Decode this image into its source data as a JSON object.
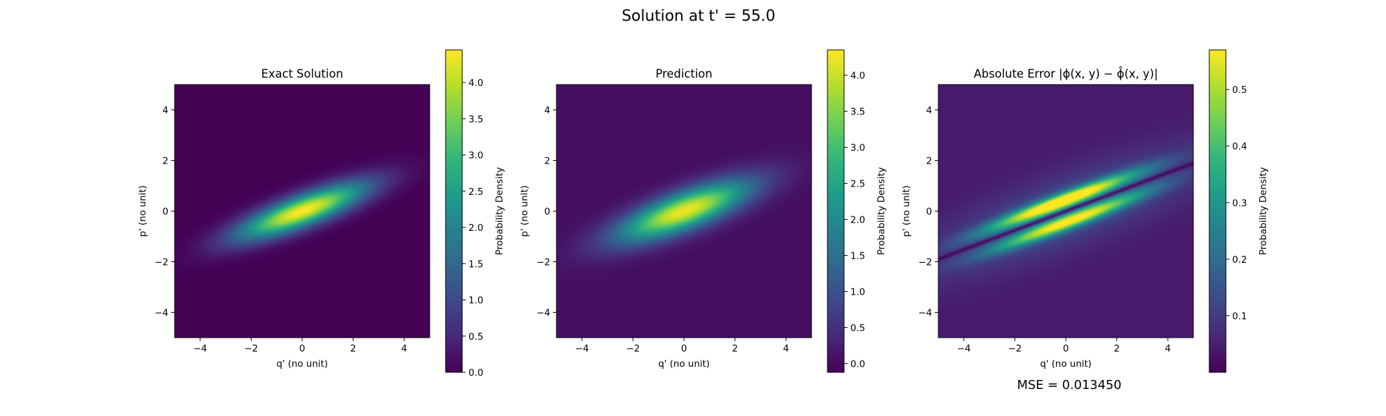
{
  "suptitle": "Solution at t' = 55.0",
  "mse_text": "MSE = 0.013450",
  "colors": {
    "colormap": "viridis",
    "viridis_stops": [
      "#440154",
      "#482878",
      "#3e4989",
      "#31688e",
      "#26828e",
      "#1f9e89",
      "#35b779",
      "#6ece58",
      "#b5de2b",
      "#fde725"
    ]
  },
  "chart_data": [
    {
      "type": "heatmap",
      "title": "Exact Solution",
      "xlabel": "q' (no unit)",
      "ylabel": "p' (no unit)",
      "xlim": [
        -5,
        5
      ],
      "ylim": [
        -5,
        5
      ],
      "xticks": [
        -4,
        -2,
        0,
        2,
        4
      ],
      "yticks": [
        -4,
        -2,
        0,
        2,
        4
      ],
      "colorbar": {
        "label": "Probability Density",
        "min": 0.0,
        "max": 4.45,
        "ticks": [
          "0.0",
          "0.5",
          "1.0",
          "1.5",
          "2.0",
          "2.5",
          "3.0",
          "3.5",
          "4.0"
        ]
      },
      "field": {
        "kind": "tilted-gaussian",
        "peak": 4.45,
        "center": [
          0,
          0
        ],
        "slope": 0.38,
        "sigma_along": 1.85,
        "sigma_across": 0.42,
        "background": 0.0
      }
    },
    {
      "type": "heatmap",
      "title": "Prediction",
      "xlabel": "q' (no unit)",
      "ylabel": "p' (no unit)",
      "xlim": [
        -5,
        5
      ],
      "ylim": [
        -5,
        5
      ],
      "xticks": [
        -4,
        -2,
        0,
        2,
        4
      ],
      "yticks": [
        -4,
        -2,
        0,
        2,
        4
      ],
      "colorbar": {
        "label": "Probability Density",
        "min": -0.12,
        "max": 4.35,
        "ticks": [
          "0.0",
          "0.5",
          "1.0",
          "1.5",
          "2.0",
          "2.5",
          "3.0",
          "3.5",
          "4.0"
        ]
      },
      "field": {
        "kind": "tilted-gaussian",
        "peak": 4.2,
        "center": [
          0,
          0
        ],
        "slope": 0.38,
        "sigma_along": 1.9,
        "sigma_across": 0.5,
        "background": 0.05
      }
    },
    {
      "type": "heatmap",
      "title": "Absolute Error |ϕ(x, y) − ϕ̂(x, y)|",
      "xlabel": "q' (no unit)",
      "ylabel": "p' (no unit)",
      "xlim": [
        -5,
        5
      ],
      "ylim": [
        -5,
        5
      ],
      "xticks": [
        -4,
        -2,
        0,
        2,
        4
      ],
      "yticks": [
        -4,
        -2,
        0,
        2,
        4
      ],
      "colorbar": {
        "label": "Probability Density",
        "min": 0.0,
        "max": 0.57,
        "ticks": [
          "0.1",
          "0.2",
          "0.3",
          "0.4",
          "0.5"
        ]
      },
      "field": {
        "kind": "two-lobe-error",
        "peak": 0.55,
        "slope": 0.38,
        "background": 0.04
      }
    }
  ]
}
